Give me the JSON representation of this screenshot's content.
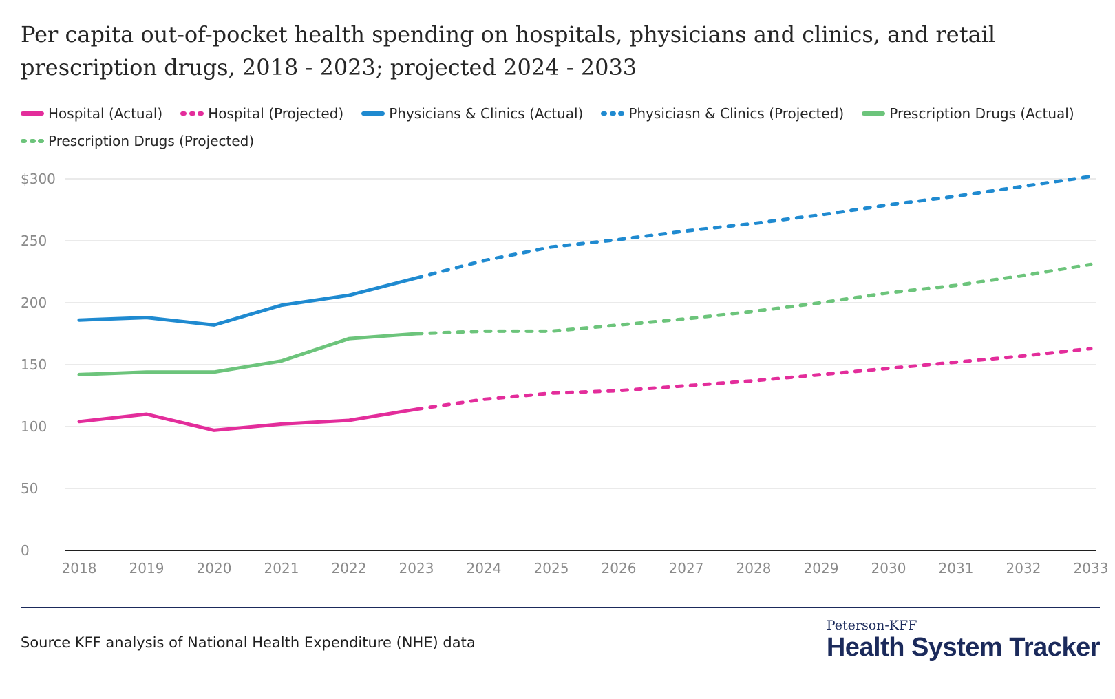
{
  "title": "Per capita out-of-pocket health spending on hospitals, physicians and clinics, and retail prescription drugs, 2018 - 2023; projected 2024 - 2033",
  "source": "Source KFF analysis of National Health Expenditure (NHE) data",
  "logo": {
    "top": "Peterson-KFF",
    "bottom": "Health System Tracker"
  },
  "colors": {
    "hospital": "#e32d9b",
    "physicians": "#1f8ad0",
    "drugs": "#6cc47b",
    "grid": "#e3e3e3",
    "axis": "#1f1f1f",
    "rule": "#1b2a5b"
  },
  "chart_data": {
    "type": "line",
    "title": "",
    "xlabel": "",
    "ylabel": "",
    "ylim": [
      0,
      300
    ],
    "yticks": [
      0,
      50,
      100,
      150,
      200,
      250,
      300
    ],
    "ytick_labels": [
      "0",
      "50",
      "100",
      "150",
      "200",
      "250",
      "$300"
    ],
    "x": [
      2018,
      2019,
      2020,
      2021,
      2022,
      2023,
      2024,
      2025,
      2026,
      2027,
      2028,
      2029,
      2030,
      2031,
      2032,
      2033
    ],
    "legend_position": "top",
    "grid": true,
    "series": [
      {
        "name": "Hospital (Actual)",
        "style": "solid",
        "color": "#e32d9b",
        "x": [
          2018,
          2019,
          2020,
          2021,
          2022,
          2023
        ],
        "values": [
          104,
          110,
          97,
          102,
          105,
          114
        ]
      },
      {
        "name": "Hospital (Projected)",
        "style": "dotted",
        "color": "#e32d9b",
        "x": [
          2023,
          2024,
          2025,
          2026,
          2027,
          2028,
          2029,
          2030,
          2031,
          2032,
          2033
        ],
        "values": [
          114,
          122,
          127,
          129,
          133,
          137,
          142,
          147,
          152,
          157,
          163
        ]
      },
      {
        "name": "Physicians & Clinics (Actual)",
        "style": "solid",
        "color": "#1f8ad0",
        "x": [
          2018,
          2019,
          2020,
          2021,
          2022,
          2023
        ],
        "values": [
          186,
          188,
          182,
          198,
          206,
          220
        ]
      },
      {
        "name": "Physiciasn & Clinics (Projected)",
        "style": "dotted",
        "color": "#1f8ad0",
        "x": [
          2023,
          2024,
          2025,
          2026,
          2027,
          2028,
          2029,
          2030,
          2031,
          2032,
          2033
        ],
        "values": [
          220,
          234,
          245,
          251,
          258,
          264,
          271,
          279,
          286,
          294,
          302
        ]
      },
      {
        "name": "Prescription Drugs (Actual)",
        "style": "solid",
        "color": "#6cc47b",
        "x": [
          2018,
          2019,
          2020,
          2021,
          2022,
          2023
        ],
        "values": [
          142,
          144,
          144,
          153,
          171,
          175
        ]
      },
      {
        "name": "Prescription Drugs (Projected)",
        "style": "dotted",
        "color": "#6cc47b",
        "x": [
          2023,
          2024,
          2025,
          2026,
          2027,
          2028,
          2029,
          2030,
          2031,
          2032,
          2033
        ],
        "values": [
          175,
          177,
          177,
          182,
          187,
          193,
          200,
          208,
          214,
          222,
          231
        ]
      }
    ]
  }
}
